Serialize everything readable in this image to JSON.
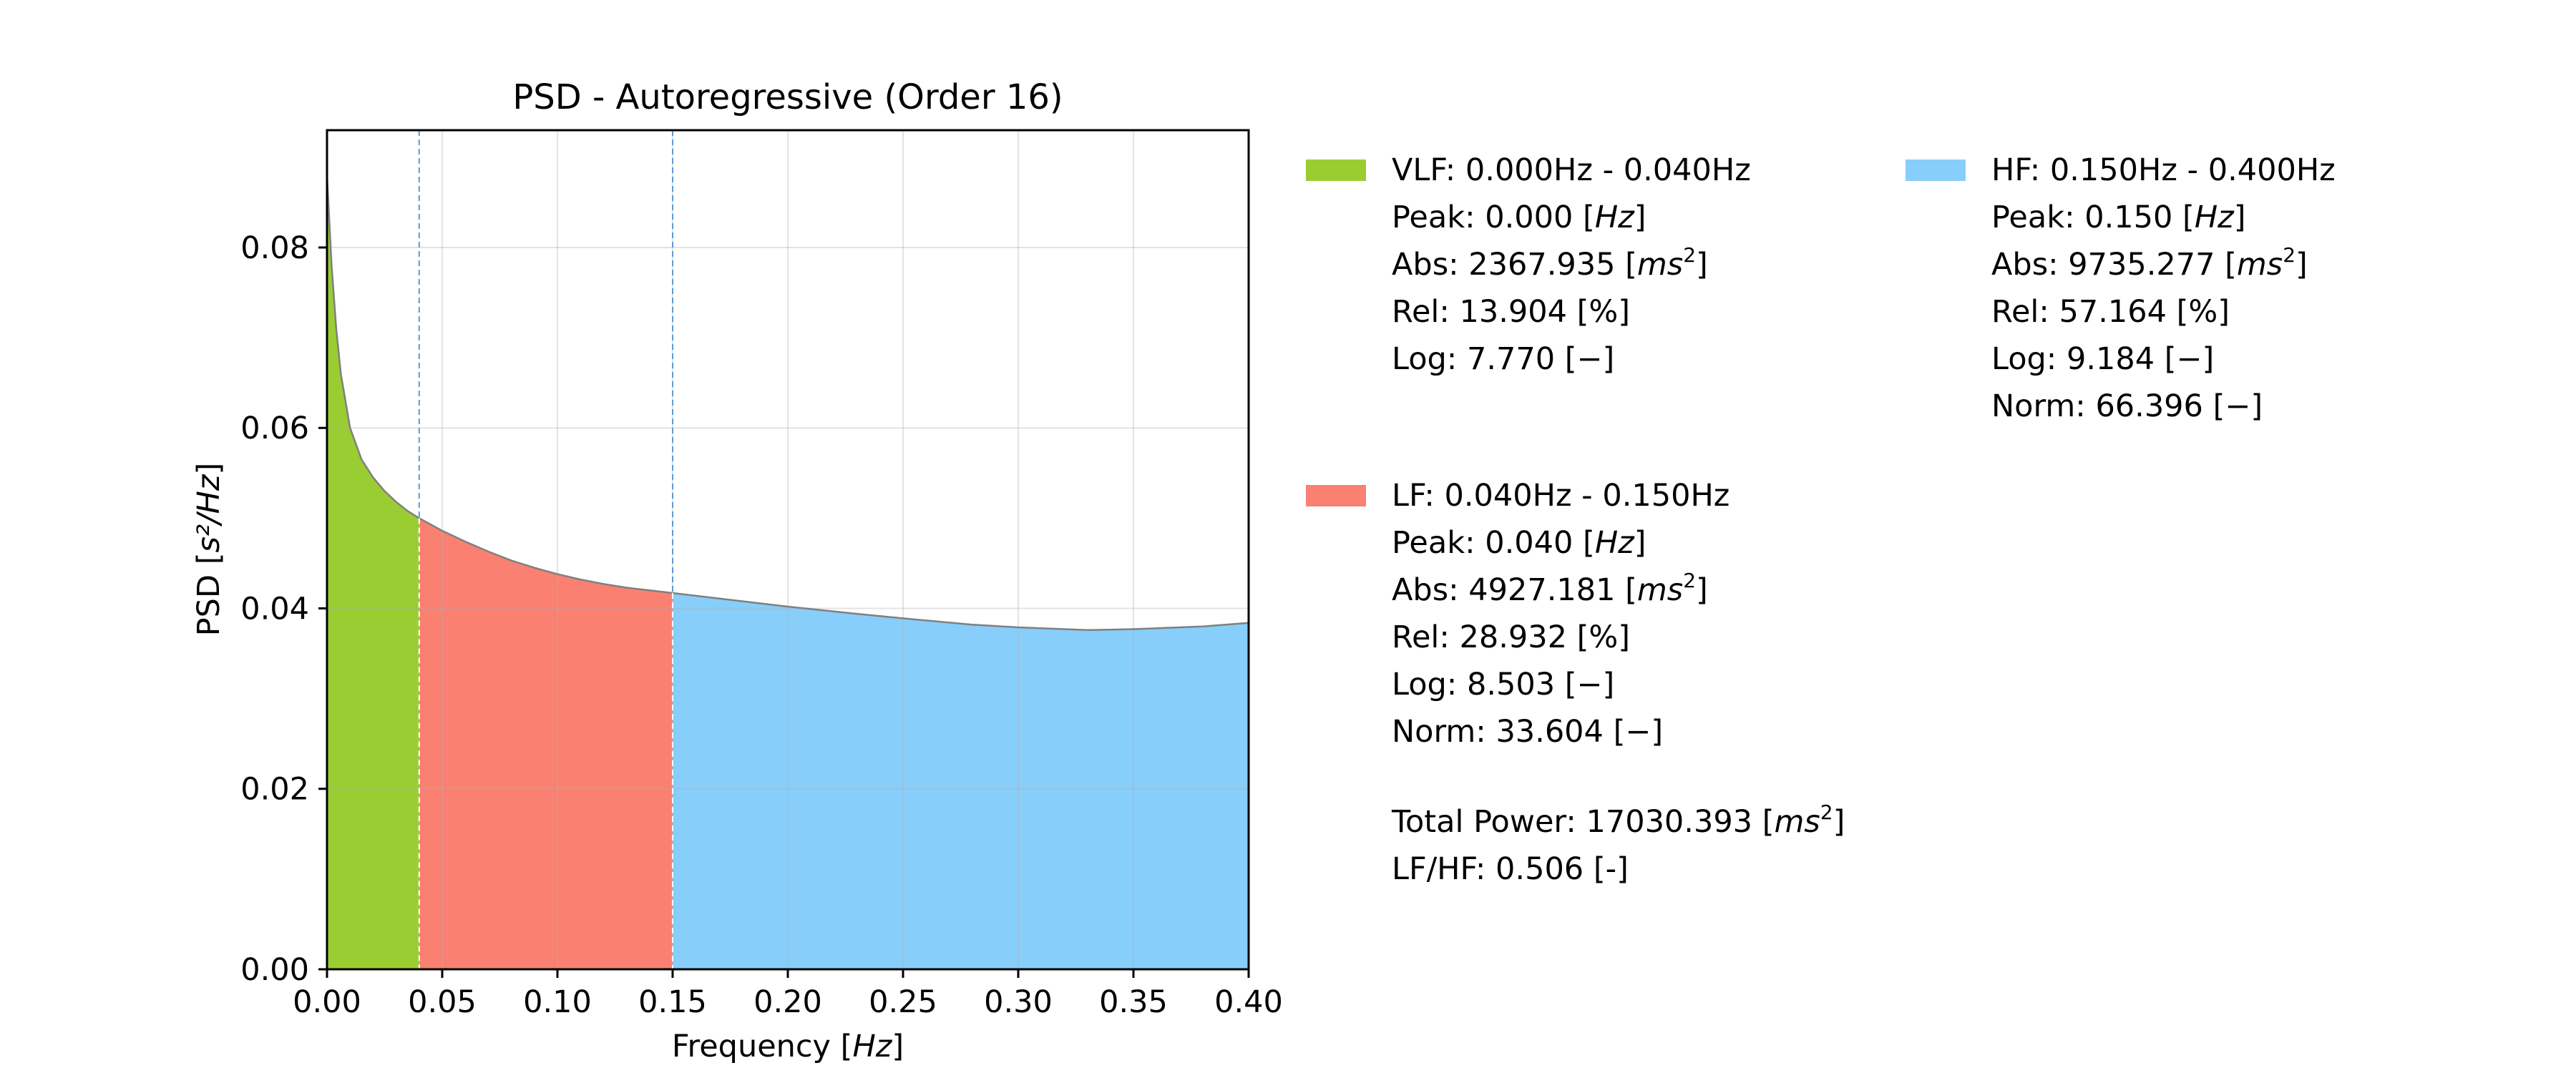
{
  "chart_data": {
    "type": "area",
    "title": "PSD - Autoregressive (Order 16)",
    "xlabel": "Frequency",
    "xlabel_unit": "Hz",
    "ylabel": "PSD",
    "ylabel_unit": "s²/Hz",
    "xlim": [
      0.0,
      0.4
    ],
    "ylim": [
      0.0,
      0.093
    ],
    "x_ticks": [
      "0.00",
      "0.05",
      "0.10",
      "0.15",
      "0.20",
      "0.25",
      "0.30",
      "0.35",
      "0.40"
    ],
    "y_ticks": [
      "0.00",
      "0.02",
      "0.04",
      "0.06",
      "0.08"
    ],
    "grid": true,
    "band_boundaries": [
      0.04,
      0.15
    ],
    "curve": {
      "x": [
        0.0,
        0.002,
        0.004,
        0.006,
        0.008,
        0.01,
        0.015,
        0.02,
        0.025,
        0.03,
        0.035,
        0.04,
        0.05,
        0.06,
        0.07,
        0.08,
        0.09,
        0.1,
        0.11,
        0.12,
        0.13,
        0.14,
        0.15,
        0.17,
        0.2,
        0.23,
        0.25,
        0.28,
        0.3,
        0.33,
        0.35,
        0.38,
        0.4
      ],
      "y": [
        0.088,
        0.078,
        0.071,
        0.066,
        0.063,
        0.06,
        0.0565,
        0.0545,
        0.053,
        0.0518,
        0.0508,
        0.05,
        0.0486,
        0.0474,
        0.0463,
        0.0453,
        0.0445,
        0.0438,
        0.0432,
        0.0427,
        0.0423,
        0.042,
        0.0417,
        0.0411,
        0.0402,
        0.0394,
        0.0389,
        0.0382,
        0.0379,
        0.0376,
        0.0377,
        0.038,
        0.0384
      ]
    },
    "bands": [
      {
        "name": "VLF",
        "from": 0.0,
        "to": 0.04,
        "color": "#9acd32"
      },
      {
        "name": "LF",
        "from": 0.04,
        "to": 0.15,
        "color": "#fa8072"
      },
      {
        "name": "HF",
        "from": 0.15,
        "to": 0.4,
        "color": "#87cefa"
      }
    ],
    "legend": {
      "vlf": {
        "title": "VLF: 0.000Hz - 0.040Hz",
        "peak": "Peak: 0.000",
        "abs": "Abs:  2367.935",
        "rel": "Rel:  13.904 [%]",
        "log": "Log:  7.770 [−]"
      },
      "lf": {
        "title": "LF: 0.040Hz - 0.150Hz",
        "peak": "Peak: 0.040",
        "abs": "Abs:  4927.181",
        "rel": "Rel:  28.932 [%]",
        "log": "Log:  8.503 [−]",
        "norm": "Norm: 33.604 [−]"
      },
      "hf": {
        "title": "HF: 0.150Hz - 0.400Hz",
        "peak": "Peak: 0.150",
        "abs": "Abs:  9735.277",
        "rel": "Rel:  57.164 [%]",
        "log": "Log:  9.184 [−]",
        "norm": "Norm: 66.396 [−]"
      },
      "total_power": "Total Power: 17030.393",
      "lf_hf": "LF/HF: 0.506 [-]",
      "unit_hz": "Hz",
      "unit_ms": "ms",
      "unit_sq": "2"
    },
    "colors": {
      "vlf": "#9acd32",
      "lf": "#fa8072",
      "hf": "#87cefa",
      "boundary": "#5b9bd5",
      "curve": "#808080"
    }
  }
}
